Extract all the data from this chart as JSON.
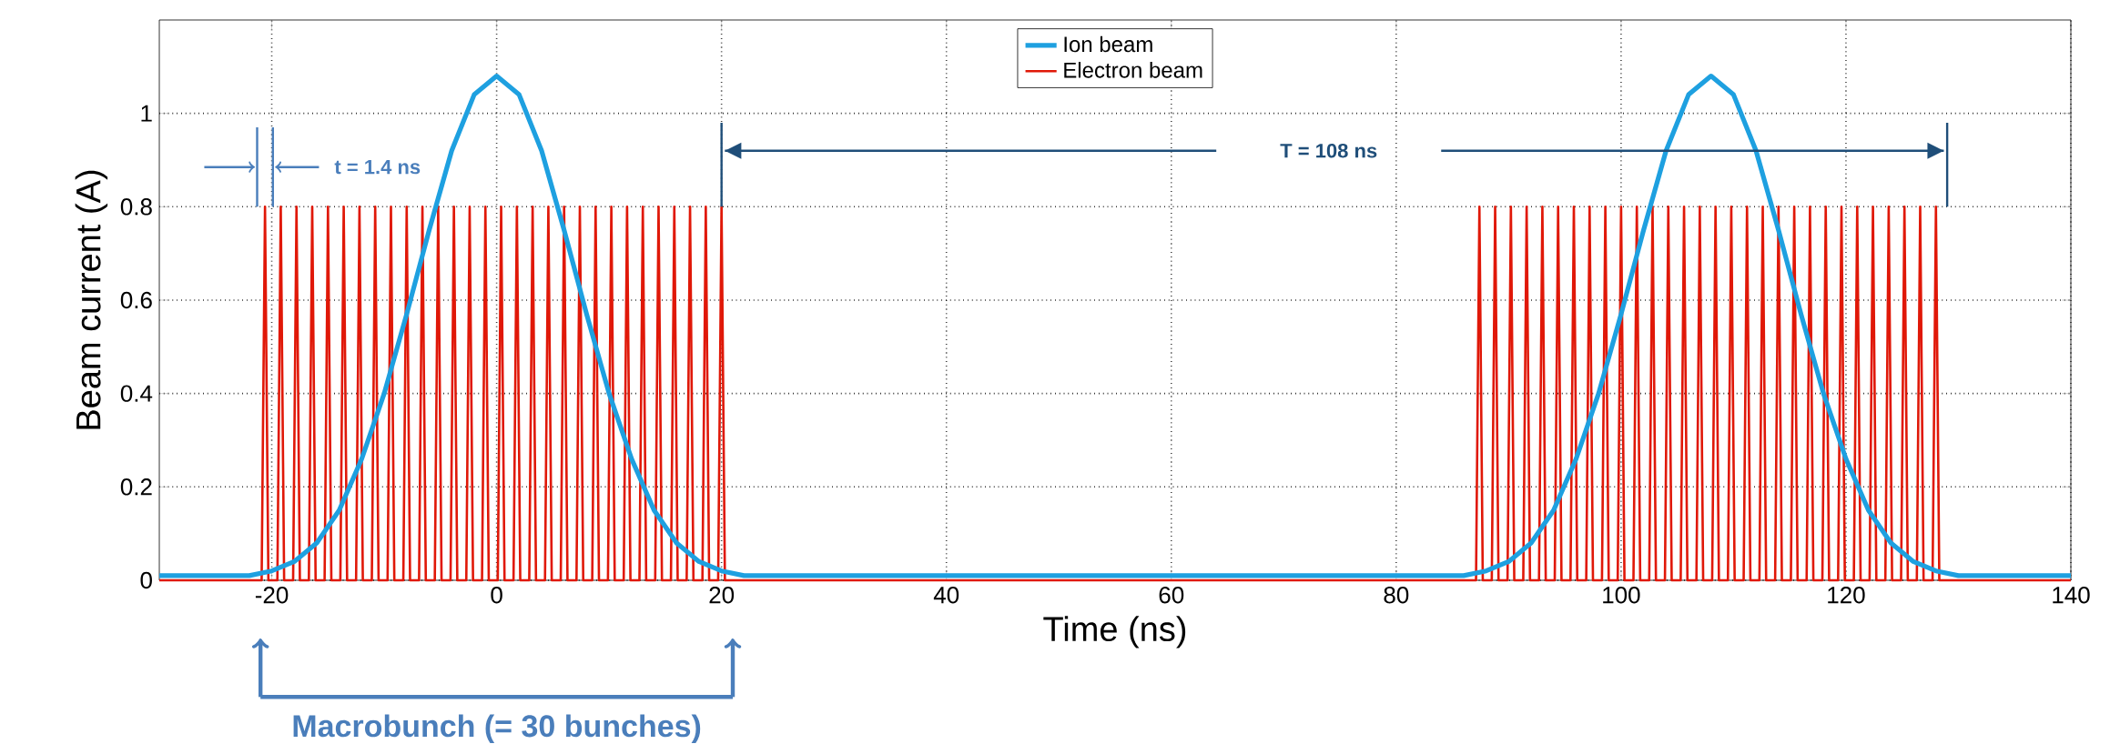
{
  "chart_data": {
    "type": "line",
    "xlabel": "Time (ns)",
    "ylabel": "Beam current (A)",
    "xlim": [
      -30,
      140
    ],
    "xticks": [
      -20,
      0,
      20,
      40,
      60,
      80,
      100,
      120,
      140
    ],
    "ylim": [
      0,
      1.2
    ],
    "yticks": [
      0,
      0.2,
      0.4,
      0.6,
      0.8,
      1
    ],
    "grid": true,
    "legend": "top",
    "series": [
      {
        "name": "Ion beam",
        "color": "#1ea0e0",
        "x": [
          -30,
          -22,
          -20,
          -18,
          -16,
          -14,
          -12,
          -10,
          -8,
          -6,
          -4,
          -2,
          0,
          2,
          4,
          6,
          8,
          10,
          12,
          14,
          16,
          18,
          20,
          22,
          86,
          88,
          90,
          92,
          94,
          96,
          98,
          100,
          102,
          104,
          106,
          108,
          110,
          112,
          114,
          116,
          118,
          120,
          122,
          124,
          126,
          128,
          130,
          140
        ],
        "values": [
          0.01,
          0.01,
          0.02,
          0.04,
          0.08,
          0.15,
          0.26,
          0.4,
          0.57,
          0.75,
          0.92,
          1.04,
          1.08,
          1.04,
          0.92,
          0.75,
          0.57,
          0.4,
          0.26,
          0.15,
          0.08,
          0.04,
          0.02,
          0.01,
          0.01,
          0.02,
          0.04,
          0.08,
          0.15,
          0.26,
          0.4,
          0.57,
          0.75,
          0.92,
          1.04,
          1.08,
          1.04,
          0.92,
          0.75,
          0.57,
          0.4,
          0.26,
          0.15,
          0.08,
          0.04,
          0.02,
          0.01,
          0.01
        ]
      },
      {
        "name": "Electron beam",
        "color": "#e01808",
        "x": [
          -30,
          -20.9,
          -20.6,
          -20.3,
          -19.5,
          -19.2,
          -18.9,
          -18.1,
          -17.8,
          -17.5,
          -16.7,
          -16.4,
          -16.1,
          -15.3,
          -15,
          -14.7,
          -13.9,
          -13.6,
          -13.3,
          -12.5,
          -12.2,
          -11.9,
          -11.1,
          -10.8,
          -10.5,
          -9.7,
          -9.4,
          -9.1,
          -8.3,
          -8,
          -7.7,
          -6.9,
          -6.6,
          -6.3,
          -5.5,
          -5.2,
          -4.9,
          -4.1,
          -3.8,
          -3.5,
          -2.7,
          -2.4,
          -2.1,
          -1.3,
          -1,
          -0.7,
          0.1,
          0.4,
          0.7,
          1.5,
          1.8,
          2.1,
          2.9,
          3.2,
          3.5,
          4.3,
          4.6,
          4.9,
          5.7,
          6,
          6.3,
          7.1,
          7.4,
          7.7,
          8.5,
          8.8,
          9.1,
          9.9,
          10.2,
          10.5,
          11.3,
          11.6,
          11.9,
          12.7,
          13,
          13.3,
          14.1,
          14.4,
          14.7,
          15.5,
          15.8,
          16.1,
          16.9,
          17.2,
          17.5,
          18.3,
          18.6,
          18.9,
          19.7,
          20,
          20.3,
          87.1,
          87.4,
          87.7,
          88.5,
          88.8,
          89.1,
          89.9,
          90.2,
          90.5,
          91.3,
          91.6,
          91.9,
          92.7,
          93,
          93.3,
          94.1,
          94.4,
          94.7,
          95.5,
          95.8,
          96.1,
          96.9,
          97.2,
          97.5,
          98.3,
          98.6,
          98.9,
          99.7,
          100,
          100.3,
          101.1,
          101.4,
          101.7,
          102.5,
          102.8,
          103.1,
          103.9,
          104.2,
          104.5,
          105.3,
          105.6,
          105.9,
          106.7,
          107,
          107.3,
          108.1,
          108.4,
          108.7,
          109.5,
          109.8,
          110.1,
          110.9,
          111.2,
          111.5,
          112.3,
          112.6,
          112.9,
          113.7,
          114,
          114.3,
          115.1,
          115.4,
          115.7,
          116.5,
          116.8,
          117.1,
          117.9,
          118.2,
          118.5,
          119.3,
          119.6,
          119.9,
          120.7,
          121,
          121.3,
          122.1,
          122.4,
          122.7,
          123.5,
          123.8,
          124.1,
          124.9,
          125.2,
          125.5,
          126.3,
          126.6,
          126.9,
          127.7,
          128,
          128.3,
          140
        ],
        "values": [
          0,
          0,
          0.8,
          0,
          0,
          0.8,
          0,
          0,
          0.8,
          0,
          0,
          0.8,
          0,
          0,
          0.8,
          0,
          0,
          0.8,
          0,
          0,
          0.8,
          0,
          0,
          0.8,
          0,
          0,
          0.8,
          0,
          0,
          0.8,
          0,
          0,
          0.8,
          0,
          0,
          0.8,
          0,
          0,
          0.8,
          0,
          0,
          0.8,
          0,
          0,
          0.8,
          0,
          0,
          0.8,
          0,
          0,
          0.8,
          0,
          0,
          0.8,
          0,
          0,
          0.8,
          0,
          0,
          0.8,
          0,
          0,
          0.8,
          0,
          0,
          0.8,
          0,
          0,
          0.8,
          0,
          0,
          0.8,
          0,
          0,
          0.8,
          0,
          0,
          0.8,
          0,
          0,
          0.8,
          0,
          0,
          0.8,
          0,
          0,
          0.8,
          0,
          0,
          0.8,
          0,
          0,
          0.8,
          0,
          0,
          0.8,
          0,
          0,
          0.8,
          0,
          0,
          0.8,
          0,
          0,
          0.8,
          0,
          0,
          0.8,
          0,
          0,
          0.8,
          0,
          0,
          0.8,
          0,
          0,
          0.8,
          0,
          0,
          0.8,
          0,
          0,
          0.8,
          0,
          0,
          0.8,
          0,
          0,
          0.8,
          0,
          0,
          0.8,
          0,
          0,
          0.8,
          0,
          0,
          0.8,
          0,
          0,
          0.8,
          0,
          0,
          0.8,
          0,
          0,
          0.8,
          0,
          0,
          0.8,
          0,
          0,
          0.8,
          0,
          0,
          0.8,
          0,
          0,
          0.8,
          0,
          0,
          0.8,
          0,
          0,
          0.8,
          0,
          0,
          0.8,
          0,
          0,
          0.8,
          0,
          0,
          0.8,
          0,
          0,
          0.8,
          0,
          0,
          0.8,
          0,
          0
        ]
      }
    ],
    "annotations": [
      "t = 1.4 ns",
      "T = 108 ns",
      "Macrobunch (= 30 bunches)"
    ]
  }
}
